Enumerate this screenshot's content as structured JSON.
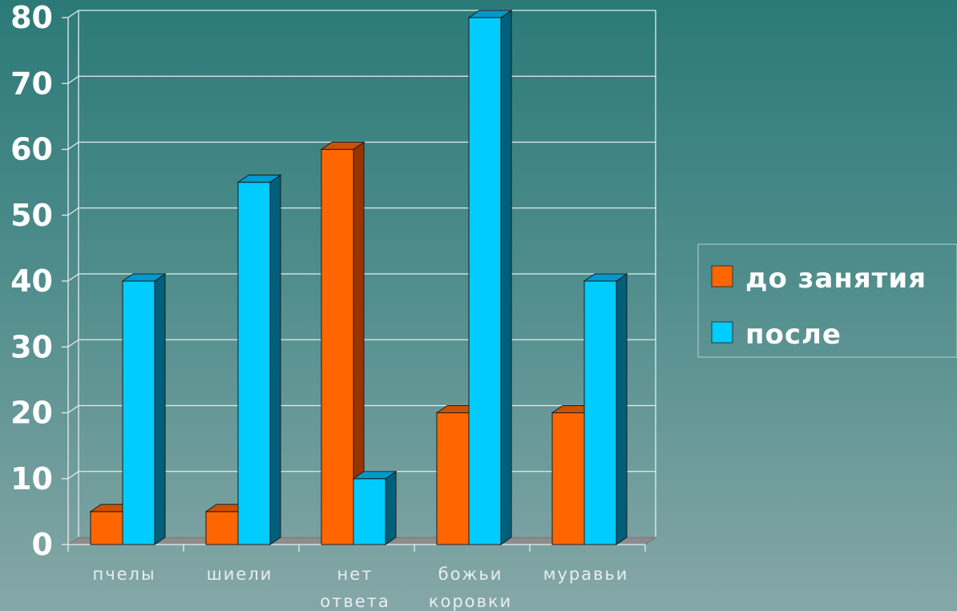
{
  "chart_data": {
    "type": "bar",
    "categories": [
      [
        "пчелы"
      ],
      [
        "шиели"
      ],
      [
        "нет",
        "ответа"
      ],
      [
        "божьи",
        "коровки"
      ],
      [
        "муравьи"
      ]
    ],
    "series": [
      {
        "name": "до занятия",
        "values": [
          5,
          5,
          60,
          20,
          20
        ],
        "color": "#ff6600",
        "side_color": "#993300",
        "top_color": "#cc5200"
      },
      {
        "name": "после",
        "values": [
          40,
          55,
          10,
          80,
          40
        ],
        "color": "#00ccff",
        "side_color": "#005f7a",
        "top_color": "#0099cc"
      }
    ],
    "yticks": [
      "0",
      "10",
      "20",
      "30",
      "40",
      "50",
      "60",
      "70",
      "80"
    ],
    "ylim": [
      0,
      80
    ],
    "grid": true,
    "legend_position": "right",
    "title": "",
    "xlabel": "",
    "ylabel": ""
  }
}
